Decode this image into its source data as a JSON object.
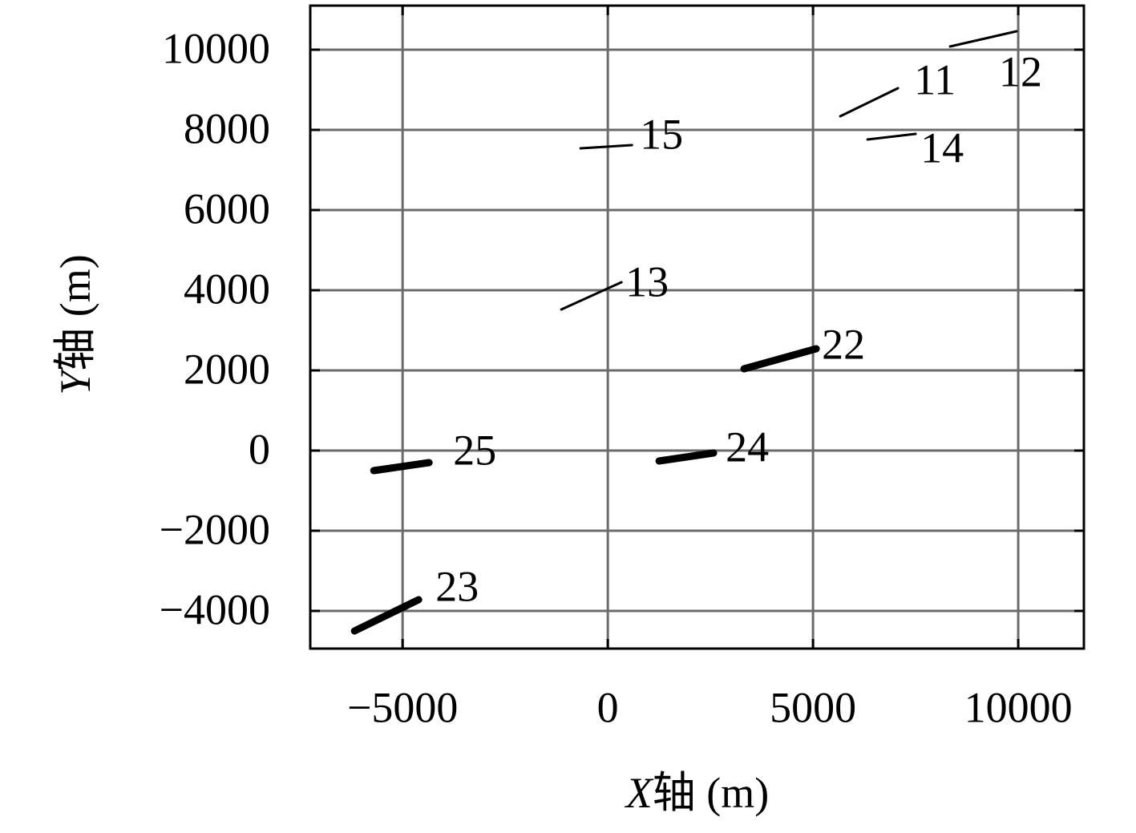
{
  "chart_data": {
    "type": "line",
    "xlabel": "X轴 (m)",
    "ylabel": "Y轴 (m)",
    "xlim": [
      -7250,
      11600
    ],
    "ylim": [
      -4940,
      11100
    ],
    "xticks": [
      {
        "value": -5000,
        "label": "−5000"
      },
      0,
      5000,
      10000
    ],
    "yticks": [
      {
        "value": -4000,
        "label": "−4000"
      },
      {
        "value": -2000,
        "label": "−2000"
      },
      0,
      2000,
      4000,
      6000,
      8000,
      10000
    ],
    "grid": true,
    "series": [
      {
        "name": "12",
        "color": "#000000",
        "x": [
          8340,
          9960
        ],
        "y": [
          10080,
          10460
        ]
      },
      {
        "name": "11",
        "color": "#000000",
        "x": [
          5664,
          7070
        ],
        "y": [
          8340,
          9040
        ]
      },
      {
        "name": "14",
        "color": "#000000",
        "x": [
          6328,
          7500
        ],
        "y": [
          7760,
          7900
        ]
      },
      {
        "name": "15",
        "color": "#000000",
        "x": [
          -664,
          586
        ],
        "y": [
          7540,
          7620
        ]
      },
      {
        "name": "13",
        "color": "#000000",
        "x": [
          -1133,
          332
        ],
        "y": [
          3520,
          4200
        ]
      },
      {
        "name": "22",
        "color": "#000000",
        "x": [
          3320,
          5078
        ],
        "y": [
          2040,
          2540
        ]
      },
      {
        "name": "24",
        "color": "#000000",
        "x": [
          1250,
          2578
        ],
        "y": [
          -260,
          -60
        ]
      },
      {
        "name": "25",
        "color": "#000000",
        "x": [
          -5703,
          -4355
        ],
        "y": [
          -500,
          -300
        ]
      },
      {
        "name": "23",
        "color": "#000000",
        "x": [
          -6172,
          -4609
        ],
        "y": [
          -4500,
          -3720
        ]
      }
    ]
  }
}
